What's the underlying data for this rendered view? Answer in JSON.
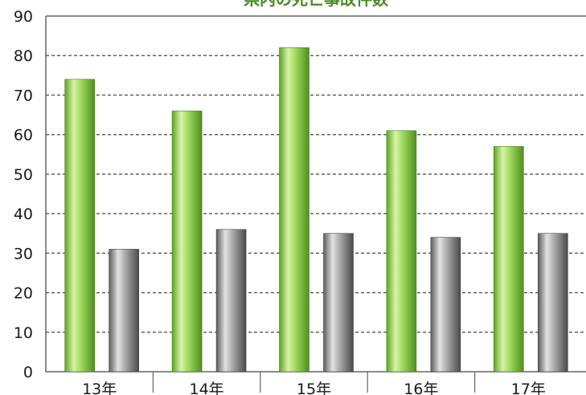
{
  "chart_data": {
    "type": "bar",
    "title": "県内の死亡事故件数",
    "xlabel": "",
    "ylabel": "",
    "categories": [
      "13年",
      "14年",
      "15年",
      "16年",
      "17年"
    ],
    "series": [
      {
        "values": [
          74,
          66,
          82,
          61,
          57
        ]
      },
      {
        "values": [
          31,
          36,
          35,
          34,
          35
        ]
      }
    ],
    "ylim": [
      0,
      90
    ],
    "yticks": [
      "0",
      "10",
      "20",
      "30",
      "40",
      "50",
      "60",
      "70",
      "80",
      "90"
    ],
    "grid": true,
    "legend": "none",
    "colors": {
      "series_1": "#8cd04a",
      "series_2": "#8a8a8a",
      "grid": "#555555",
      "axis": "#666666",
      "title": "#4a8a24"
    }
  }
}
